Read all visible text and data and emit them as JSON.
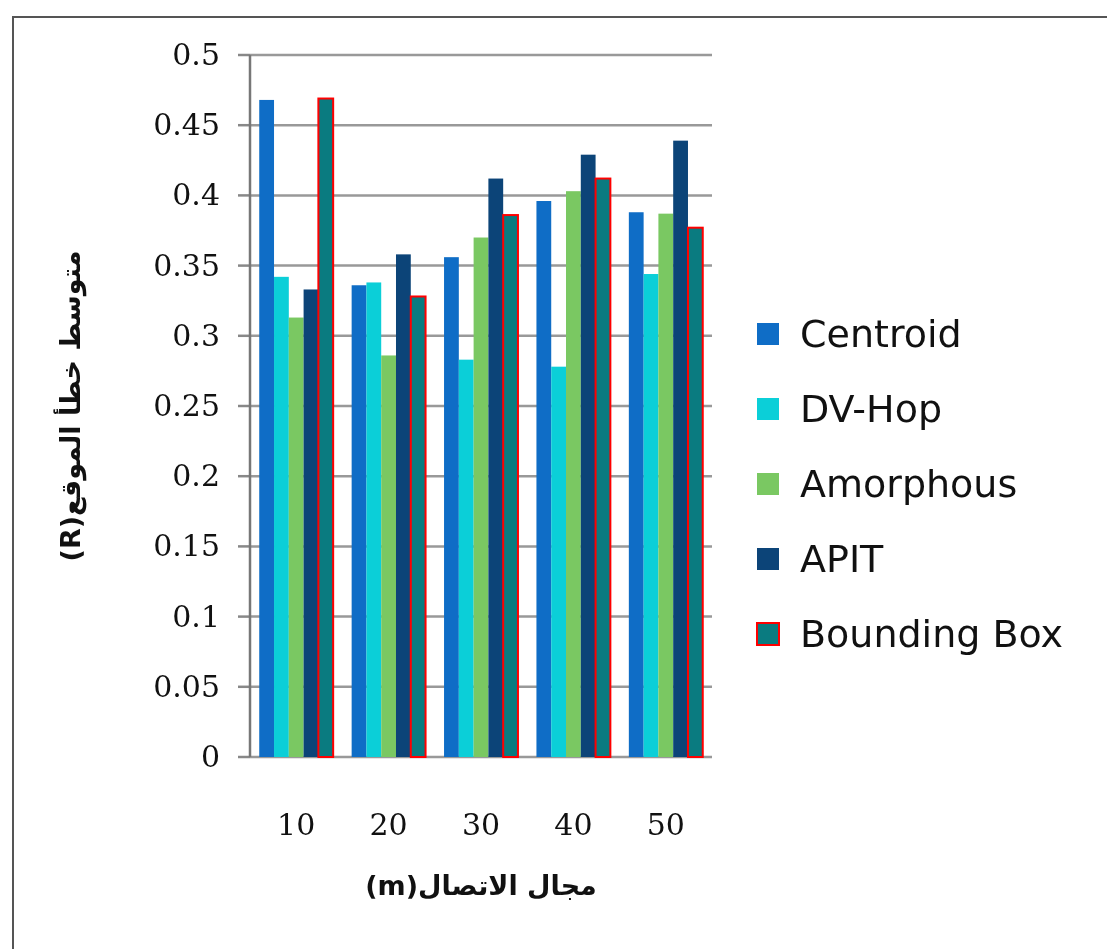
{
  "chart_data": {
    "type": "bar",
    "xlabel": "مجال الاتصال(m)",
    "ylabel": "متوسط خطأ الموقع(R)",
    "categories": [
      "10",
      "20",
      "30",
      "40",
      "50"
    ],
    "series": [
      {
        "name": "Centroid",
        "color": "#0f6dc6",
        "values": [
          0.468,
          0.336,
          0.356,
          0.396,
          0.388
        ]
      },
      {
        "name": "DV-Hop",
        "color": "#0bcfd8",
        "values": [
          0.342,
          0.338,
          0.283,
          0.278,
          0.344
        ]
      },
      {
        "name": "Amorphous",
        "color": "#7ac862",
        "values": [
          0.313,
          0.286,
          0.37,
          0.403,
          0.387
        ]
      },
      {
        "name": "APIT",
        "color": "#0c4478",
        "values": [
          0.333,
          0.358,
          0.412,
          0.429,
          0.439
        ]
      },
      {
        "name": "Bounding Box",
        "color": "#0a7b80",
        "values": [
          0.469,
          0.328,
          0.386,
          0.412,
          0.377
        ]
      }
    ],
    "ylim": [
      0,
      0.5
    ],
    "yticks": [
      0,
      0.05,
      0.1,
      0.15,
      0.2,
      0.25,
      0.3,
      0.35,
      0.4,
      0.45,
      0.5
    ],
    "grid": "y",
    "legend": "right"
  }
}
